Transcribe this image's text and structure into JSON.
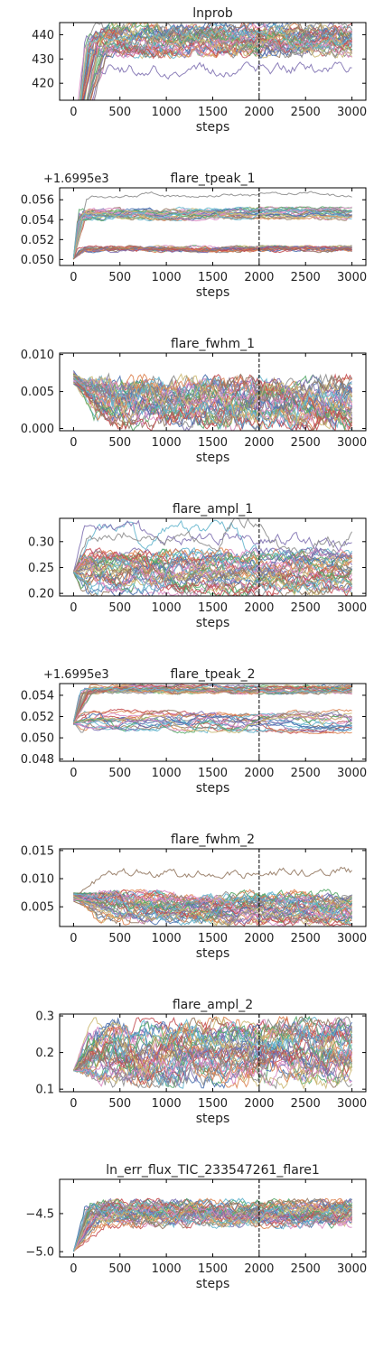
{
  "chart_data": [
    {
      "type": "line",
      "title": "lnprob",
      "xlabel": "steps",
      "xlim": [
        -150,
        3150
      ],
      "ylim": [
        413,
        445
      ],
      "xticks": [
        0,
        500,
        1000,
        1500,
        2000,
        2500,
        3000
      ],
      "yticks": [
        420,
        430,
        440
      ],
      "ytick_labels": [
        "420",
        "430",
        "440"
      ],
      "offset_label": "",
      "vline": 2000,
      "walkers": 40,
      "start": [
        380,
        400
      ],
      "burn_steps": 250,
      "bands": [
        [
          432,
          444,
          0.85
        ],
        [
          422,
          427,
          0.06
        ],
        [
          413,
          417,
          0.04
        ]
      ],
      "noise": 1.8
    },
    {
      "type": "line",
      "title": "flare_tpeak_1",
      "xlabel": "steps",
      "xlim": [
        -150,
        3150
      ],
      "ylim": [
        0.0494,
        0.0572
      ],
      "xticks": [
        0,
        500,
        1000,
        1500,
        2000,
        2500,
        3000
      ],
      "yticks": [
        0.05,
        0.052,
        0.054,
        0.056
      ],
      "ytick_labels": [
        "0.050",
        "0.052",
        "0.054",
        "0.056"
      ],
      "offset_label": "+1.6995e3",
      "vline": 2000,
      "walkers": 40,
      "start": [
        0.05,
        0.0502
      ],
      "burn_steps": 100,
      "bands": [
        [
          0.054,
          0.0552,
          0.55
        ],
        [
          0.0508,
          0.0513,
          0.42
        ],
        [
          0.0562,
          0.0568,
          0.03
        ]
      ],
      "noise": 0.00012
    },
    {
      "type": "line",
      "title": "flare_fwhm_1",
      "xlabel": "steps",
      "xlim": [
        -150,
        3150
      ],
      "ylim": [
        -0.0003,
        0.0102
      ],
      "xticks": [
        0,
        500,
        1000,
        1500,
        2000,
        2500,
        3000
      ],
      "yticks": [
        0.0,
        0.005,
        0.01
      ],
      "ytick_labels": [
        "0.000",
        "0.005",
        "0.010"
      ],
      "offset_label": "",
      "vline": 2000,
      "walkers": 40,
      "start": [
        0.006,
        0.008
      ],
      "burn_steps": 300,
      "bands": [
        [
          0.0005,
          0.0065,
          1.0
        ]
      ],
      "noise": 0.0009
    },
    {
      "type": "line",
      "title": "flare_ampl_1",
      "xlabel": "steps",
      "xlim": [
        -150,
        3150
      ],
      "ylim": [
        0.195,
        0.345
      ],
      "xticks": [
        0,
        500,
        1000,
        1500,
        2000,
        2500,
        3000
      ],
      "yticks": [
        0.2,
        0.25,
        0.3
      ],
      "ytick_labels": [
        "0.20",
        "0.25",
        "0.30"
      ],
      "offset_label": "",
      "vline": 2000,
      "walkers": 40,
      "start": [
        0.24,
        0.243
      ],
      "burn_steps": 150,
      "bands": [
        [
          0.2,
          0.28,
          0.9
        ],
        [
          0.28,
          0.34,
          0.1
        ]
      ],
      "noise": 0.008
    },
    {
      "type": "line",
      "title": "flare_tpeak_2",
      "xlabel": "steps",
      "xlim": [
        -150,
        3150
      ],
      "ylim": [
        0.0478,
        0.0551
      ],
      "xticks": [
        0,
        500,
        1000,
        1500,
        2000,
        2500,
        3000
      ],
      "yticks": [
        0.048,
        0.05,
        0.052,
        0.054
      ],
      "ytick_labels": [
        "0.048",
        "0.050",
        "0.052",
        "0.054"
      ],
      "offset_label": "+1.6995e3",
      "vline": 2000,
      "walkers": 40,
      "start": [
        0.0512,
        0.0516
      ],
      "burn_steps": 150,
      "bands": [
        [
          0.0542,
          0.0549,
          0.45
        ],
        [
          0.0505,
          0.0526,
          0.55
        ]
      ],
      "noise": 0.00012
    },
    {
      "type": "line",
      "title": "flare_fwhm_2",
      "xlabel": "steps",
      "xlim": [
        -150,
        3150
      ],
      "ylim": [
        0.0015,
        0.0153
      ],
      "xticks": [
        0,
        500,
        1000,
        1500,
        2000,
        2500,
        3000
      ],
      "yticks": [
        0.005,
        0.01,
        0.015
      ],
      "ytick_labels": [
        "0.005",
        "0.010",
        "0.015"
      ],
      "offset_label": "",
      "vline": 2000,
      "walkers": 40,
      "start": [
        0.006,
        0.0075
      ],
      "burn_steps": 400,
      "bands": [
        [
          0.0022,
          0.0075,
          0.97
        ],
        [
          0.0106,
          0.0115,
          0.03
        ]
      ],
      "noise": 0.0006
    },
    {
      "type": "line",
      "title": "flare_ampl_2",
      "xlabel": "steps",
      "xlim": [
        -150,
        3150
      ],
      "ylim": [
        0.093,
        0.305
      ],
      "xticks": [
        0,
        500,
        1000,
        1500,
        2000,
        2500,
        3000
      ],
      "yticks": [
        0.1,
        0.2,
        0.3
      ],
      "ytick_labels": [
        "0.1",
        "0.2",
        "0.3"
      ],
      "offset_label": "",
      "vline": 2000,
      "walkers": 40,
      "start": [
        0.15,
        0.152
      ],
      "burn_steps": 300,
      "bands": [
        [
          0.12,
          0.28,
          1.0
        ]
      ],
      "noise": 0.018
    },
    {
      "type": "line",
      "title": "ln_err_flux_TIC_233547261_flare1",
      "xlabel": "steps",
      "xlim": [
        -150,
        3150
      ],
      "ylim": [
        -5.07,
        -4.05
      ],
      "xticks": [
        0,
        500,
        1000,
        1500,
        2000,
        2500,
        3000
      ],
      "yticks": [
        -5.0,
        -4.5
      ],
      "ytick_labels": [
        "−5.0",
        "−4.5"
      ],
      "offset_label": "",
      "vline": 2000,
      "walkers": 40,
      "start": [
        -5.0,
        -4.99
      ],
      "burn_steps": 250,
      "bands": [
        [
          -4.65,
          -4.35,
          1.0
        ]
      ],
      "noise": 0.05
    }
  ],
  "colors": [
    "#4c72b0",
    "#dd8452",
    "#55a868",
    "#c44e52",
    "#8172b3",
    "#937860",
    "#da8bc3",
    "#8c8c8c",
    "#ccb974",
    "#64b5cd"
  ]
}
